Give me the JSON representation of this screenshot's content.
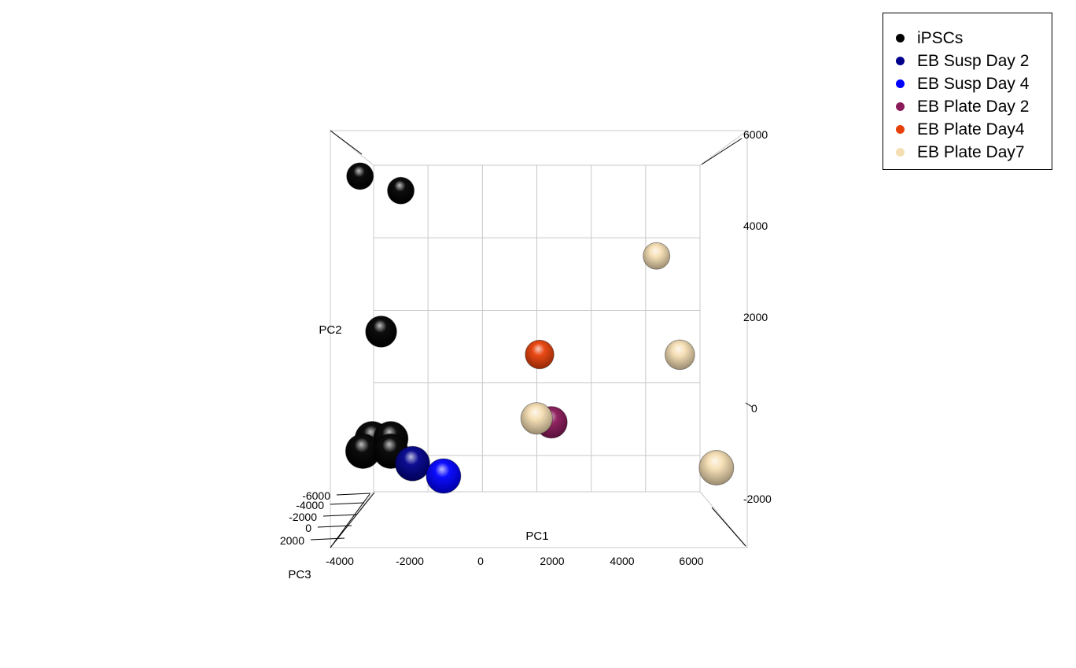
{
  "chart_data": {
    "type": "scatter",
    "title": "",
    "axes": {
      "x": {
        "label": "PC1",
        "ticks": [
          "-4000",
          "-2000",
          "0",
          "2000",
          "4000",
          "6000"
        ]
      },
      "y": {
        "label": "PC2",
        "ticks": [
          "-2000",
          "0",
          "2000",
          "4000",
          "6000"
        ]
      },
      "z": {
        "label": "PC3",
        "ticks": [
          "-6000",
          "-4000",
          "-2000",
          "0",
          "2000"
        ]
      }
    },
    "legend_position": "top-right",
    "series": [
      {
        "name": "iPSCs",
        "color": "#000000",
        "points": [
          {
            "pc1": -4500,
            "pc2": 5700,
            "pc3": -6000
          },
          {
            "pc1": -3000,
            "pc2": 5300,
            "pc3": -6000
          },
          {
            "pc1": -3300,
            "pc2": 1400,
            "pc3": -1500
          },
          {
            "pc1": -3300,
            "pc2": -1200,
            "pc3": 2000
          },
          {
            "pc1": -2700,
            "pc2": -1200,
            "pc3": 2000
          },
          {
            "pc1": -3600,
            "pc2": -1500,
            "pc3": 2000
          },
          {
            "pc1": -2700,
            "pc2": -1500,
            "pc3": 2000
          }
        ]
      },
      {
        "name": "EB Susp Day 2",
        "color": "#00008B",
        "points": [
          {
            "pc1": -2000,
            "pc2": -1800,
            "pc3": 2000
          }
        ]
      },
      {
        "name": "EB Susp Day 4",
        "color": "#0000FF",
        "points": [
          {
            "pc1": -1000,
            "pc2": -2100,
            "pc3": 2000
          }
        ]
      },
      {
        "name": "EB Plate Day 2",
        "color": "#8B1A5A",
        "points": [
          {
            "pc1": 2500,
            "pc2": -900,
            "pc3": -1000
          }
        ]
      },
      {
        "name": "EB Plate Day4",
        "color": "#E8400A",
        "points": [
          {
            "pc1": 2100,
            "pc2": 800,
            "pc3": -4000
          }
        ]
      },
      {
        "name": "EB Plate Day7",
        "color": "#F5DEB3",
        "points": [
          {
            "pc1": 6400,
            "pc2": 3500,
            "pc3": -6000
          },
          {
            "pc1": 7000,
            "pc2": 800,
            "pc3": -3000
          },
          {
            "pc1": 2000,
            "pc2": -800,
            "pc3": -1000
          },
          {
            "pc1": 7800,
            "pc2": -1900,
            "pc3": 2000
          }
        ]
      }
    ]
  }
}
